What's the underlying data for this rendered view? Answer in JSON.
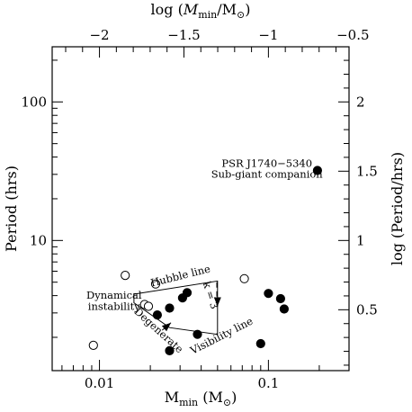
{
  "chart_data": {
    "type": "scatter",
    "x_axis": {
      "label_main": "M",
      "label_sub": "min",
      "label_unit_open": " (M",
      "label_unit_sub": "⊙",
      "label_unit_close": ")",
      "scale": "log",
      "range": [
        0.00525,
        0.3
      ],
      "ticks": [
        {
          "value": 0.01,
          "label": "0.01"
        },
        {
          "value": 0.1,
          "label": "0.1"
        }
      ]
    },
    "y_axis": {
      "label": "Period (hrs)",
      "scale": "log",
      "range": [
        1.15,
        250
      ],
      "ticks": [
        {
          "value": 10,
          "label": "10"
        },
        {
          "value": 100,
          "label": "100"
        }
      ]
    },
    "top_axis": {
      "label_prefix": "log (",
      "label_main": "M",
      "label_sub": "min",
      "label_mid": "/M",
      "label_sub2": "⊙",
      "label_suffix": ")",
      "ticks": [
        {
          "value": -2,
          "label": "−2"
        },
        {
          "value": -1.5,
          "label": "−1.5"
        },
        {
          "value": -1,
          "label": "−1"
        },
        {
          "value": -0.5,
          "label": "−0.5"
        }
      ]
    },
    "right_axis": {
      "label": "log (Period/hrs)",
      "ticks": [
        {
          "value": 0.5,
          "label": "0.5"
        },
        {
          "value": 1,
          "label": "1"
        },
        {
          "value": 1.5,
          "label": "1.5"
        },
        {
          "value": 2,
          "label": "2"
        }
      ]
    },
    "series": [
      {
        "marker": "filled-circle",
        "points": [
          {
            "x": 0.022,
            "y": 2.9
          },
          {
            "x": 0.026,
            "y": 3.25
          },
          {
            "x": 0.031,
            "y": 3.85
          },
          {
            "x": 0.033,
            "y": 4.2
          },
          {
            "x": 0.1,
            "y": 4.15
          },
          {
            "x": 0.118,
            "y": 3.8
          },
          {
            "x": 0.124,
            "y": 3.2
          },
          {
            "x": 0.026,
            "y": 1.6
          },
          {
            "x": 0.038,
            "y": 2.1
          },
          {
            "x": 0.09,
            "y": 1.8
          },
          {
            "x": 0.195,
            "y": 32
          }
        ]
      },
      {
        "marker": "open-circle",
        "points": [
          {
            "x": 0.0092,
            "y": 1.75
          },
          {
            "x": 0.0142,
            "y": 5.6
          },
          {
            "x": 0.0185,
            "y": 3.45
          },
          {
            "x": 0.0195,
            "y": 3.35
          },
          {
            "x": 0.0215,
            "y": 4.85
          },
          {
            "x": 0.072,
            "y": 5.3
          }
        ]
      }
    ],
    "region_outline": [
      [
        0.016,
        4.1
      ],
      [
        0.05,
        5.1
      ],
      [
        0.05,
        2.1
      ],
      [
        0.026,
        2.35
      ],
      [
        0.016,
        3.55
      ],
      [
        0.016,
        4.1
      ]
    ],
    "k_line": [
      [
        0.0495,
        5.0
      ],
      [
        0.0495,
        3.4
      ]
    ],
    "arrows": [
      {
        "from": [
          0.05,
          3.9
        ],
        "to": [
          0.05,
          3.35
        ]
      },
      {
        "from": [
          0.0235,
          2.25
        ],
        "to": [
          0.0265,
          2.55
        ]
      }
    ],
    "annotations": [
      {
        "text": "Hubble line",
        "x": 0.0305,
        "y": 5.25,
        "angle": -14
      },
      {
        "text": "k = 3",
        "x": 0.0435,
        "y": 3.95,
        "angle": 72
      },
      {
        "text": "Dynamical",
        "x": 0.0122,
        "y": 3.8,
        "angle": 0
      },
      {
        "text": "instability",
        "x": 0.0122,
        "y": 3.15,
        "angle": 0
      },
      {
        "text": "Degenerate",
        "x": 0.0217,
        "y": 2.15,
        "angle": 42
      },
      {
        "text": "Visibility line",
        "x": 0.054,
        "y": 1.95,
        "angle": -27
      },
      {
        "text": "PSR J1740−5340",
        "x": 0.098,
        "y": 34,
        "angle": 0
      },
      {
        "text": "Sub-giant companion",
        "x": 0.098,
        "y": 28.5,
        "angle": 0
      }
    ]
  }
}
